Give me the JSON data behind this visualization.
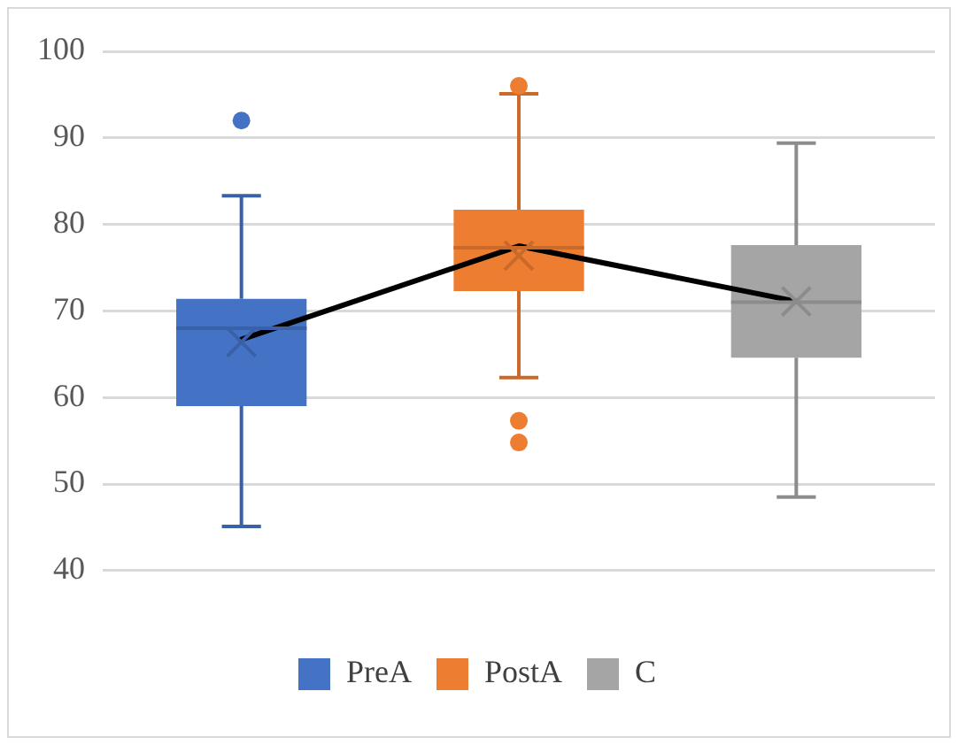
{
  "chart_data": {
    "type": "box",
    "categories": [
      null,
      null,
      null
    ],
    "ylim": [
      40,
      100
    ],
    "yticks": [
      40,
      50,
      60,
      70,
      80,
      90,
      100
    ],
    "grid": "y",
    "legend": "bottom",
    "series": [
      {
        "name": "PreA",
        "color": "#4472c4",
        "boxes": [
          {
            "low": 45.1,
            "q1": 59,
            "median": 68,
            "q3": 71.4,
            "high": 83.3,
            "mean": 66.4,
            "outliers": [
              92
            ]
          },
          null,
          null
        ]
      },
      {
        "name": "PostA",
        "color": "#ed7d31",
        "boxes": [
          null,
          {
            "low": 62.3,
            "q1": 72.3,
            "median": 77.3,
            "q3": 81.7,
            "high": 95.1,
            "mean": 76.4,
            "outliers": [
              96,
              57.3,
              54.8
            ]
          },
          null
        ]
      },
      {
        "name": "C",
        "color": "#a5a5a5",
        "boxes": [
          null,
          null,
          {
            "low": 48.5,
            "q1": 64.6,
            "median": 71,
            "q3": 77.6,
            "high": 89.4,
            "mean": 71.1
          }
        ]
      },
      {
        "type": "line",
        "color": "#000000",
        "values": [
          66.7,
          77.5,
          71.1
        ]
      }
    ]
  }
}
